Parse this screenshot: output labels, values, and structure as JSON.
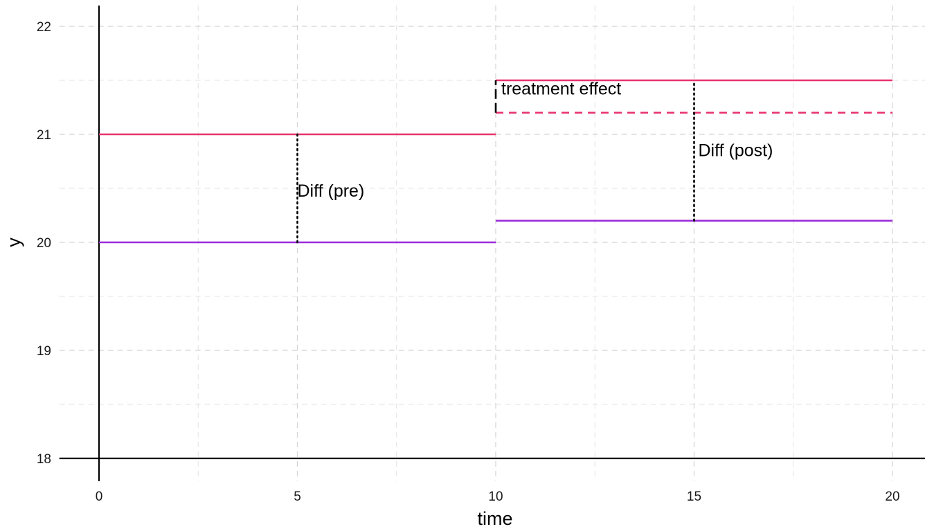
{
  "chart_data": {
    "type": "line",
    "title": "",
    "xlabel": "time",
    "ylabel": "y",
    "xlim": [
      -1,
      21.5
    ],
    "ylim": [
      18,
      22.2
    ],
    "x_ticks": [
      0,
      5,
      10,
      15,
      20
    ],
    "y_ticks": [
      18,
      19,
      20,
      21,
      22
    ],
    "x_minor_ticks": [
      2.5,
      7.5,
      12.5,
      17.5
    ],
    "y_minor_ticks": [
      18.5,
      19.5,
      20.5,
      21.5
    ],
    "grid": true,
    "colors": {
      "treated": "#e8336e",
      "control": "#9b2bdc",
      "annotation": "#000000",
      "axis": "#000000"
    },
    "segments": [
      {
        "group": "treated",
        "style": "solid",
        "x": [
          0,
          10
        ],
        "y": [
          21,
          21
        ]
      },
      {
        "group": "control",
        "style": "solid",
        "x": [
          0,
          10
        ],
        "y": [
          20,
          20
        ]
      },
      {
        "group": "treated",
        "style": "solid",
        "x": [
          10,
          20
        ],
        "y": [
          21.5,
          21.5
        ]
      },
      {
        "group": "treated",
        "style": "dashed",
        "x": [
          10,
          20
        ],
        "y": [
          21.2,
          21.2
        ]
      },
      {
        "group": "control",
        "style": "solid",
        "x": [
          10,
          20
        ],
        "y": [
          20.2,
          20.2
        ]
      }
    ],
    "annotations": [
      {
        "label": "Diff (pre)",
        "x": 5,
        "y_from": 20,
        "y_to": 21,
        "line": "dotted"
      },
      {
        "label": "Diff (post)",
        "x": 15,
        "y_from": 20.2,
        "y_to": 21.5,
        "line": "dotted"
      },
      {
        "label": "treatment effect",
        "x": 10,
        "y_from": 21.2,
        "y_to": 21.5,
        "line": "dashed"
      }
    ]
  }
}
